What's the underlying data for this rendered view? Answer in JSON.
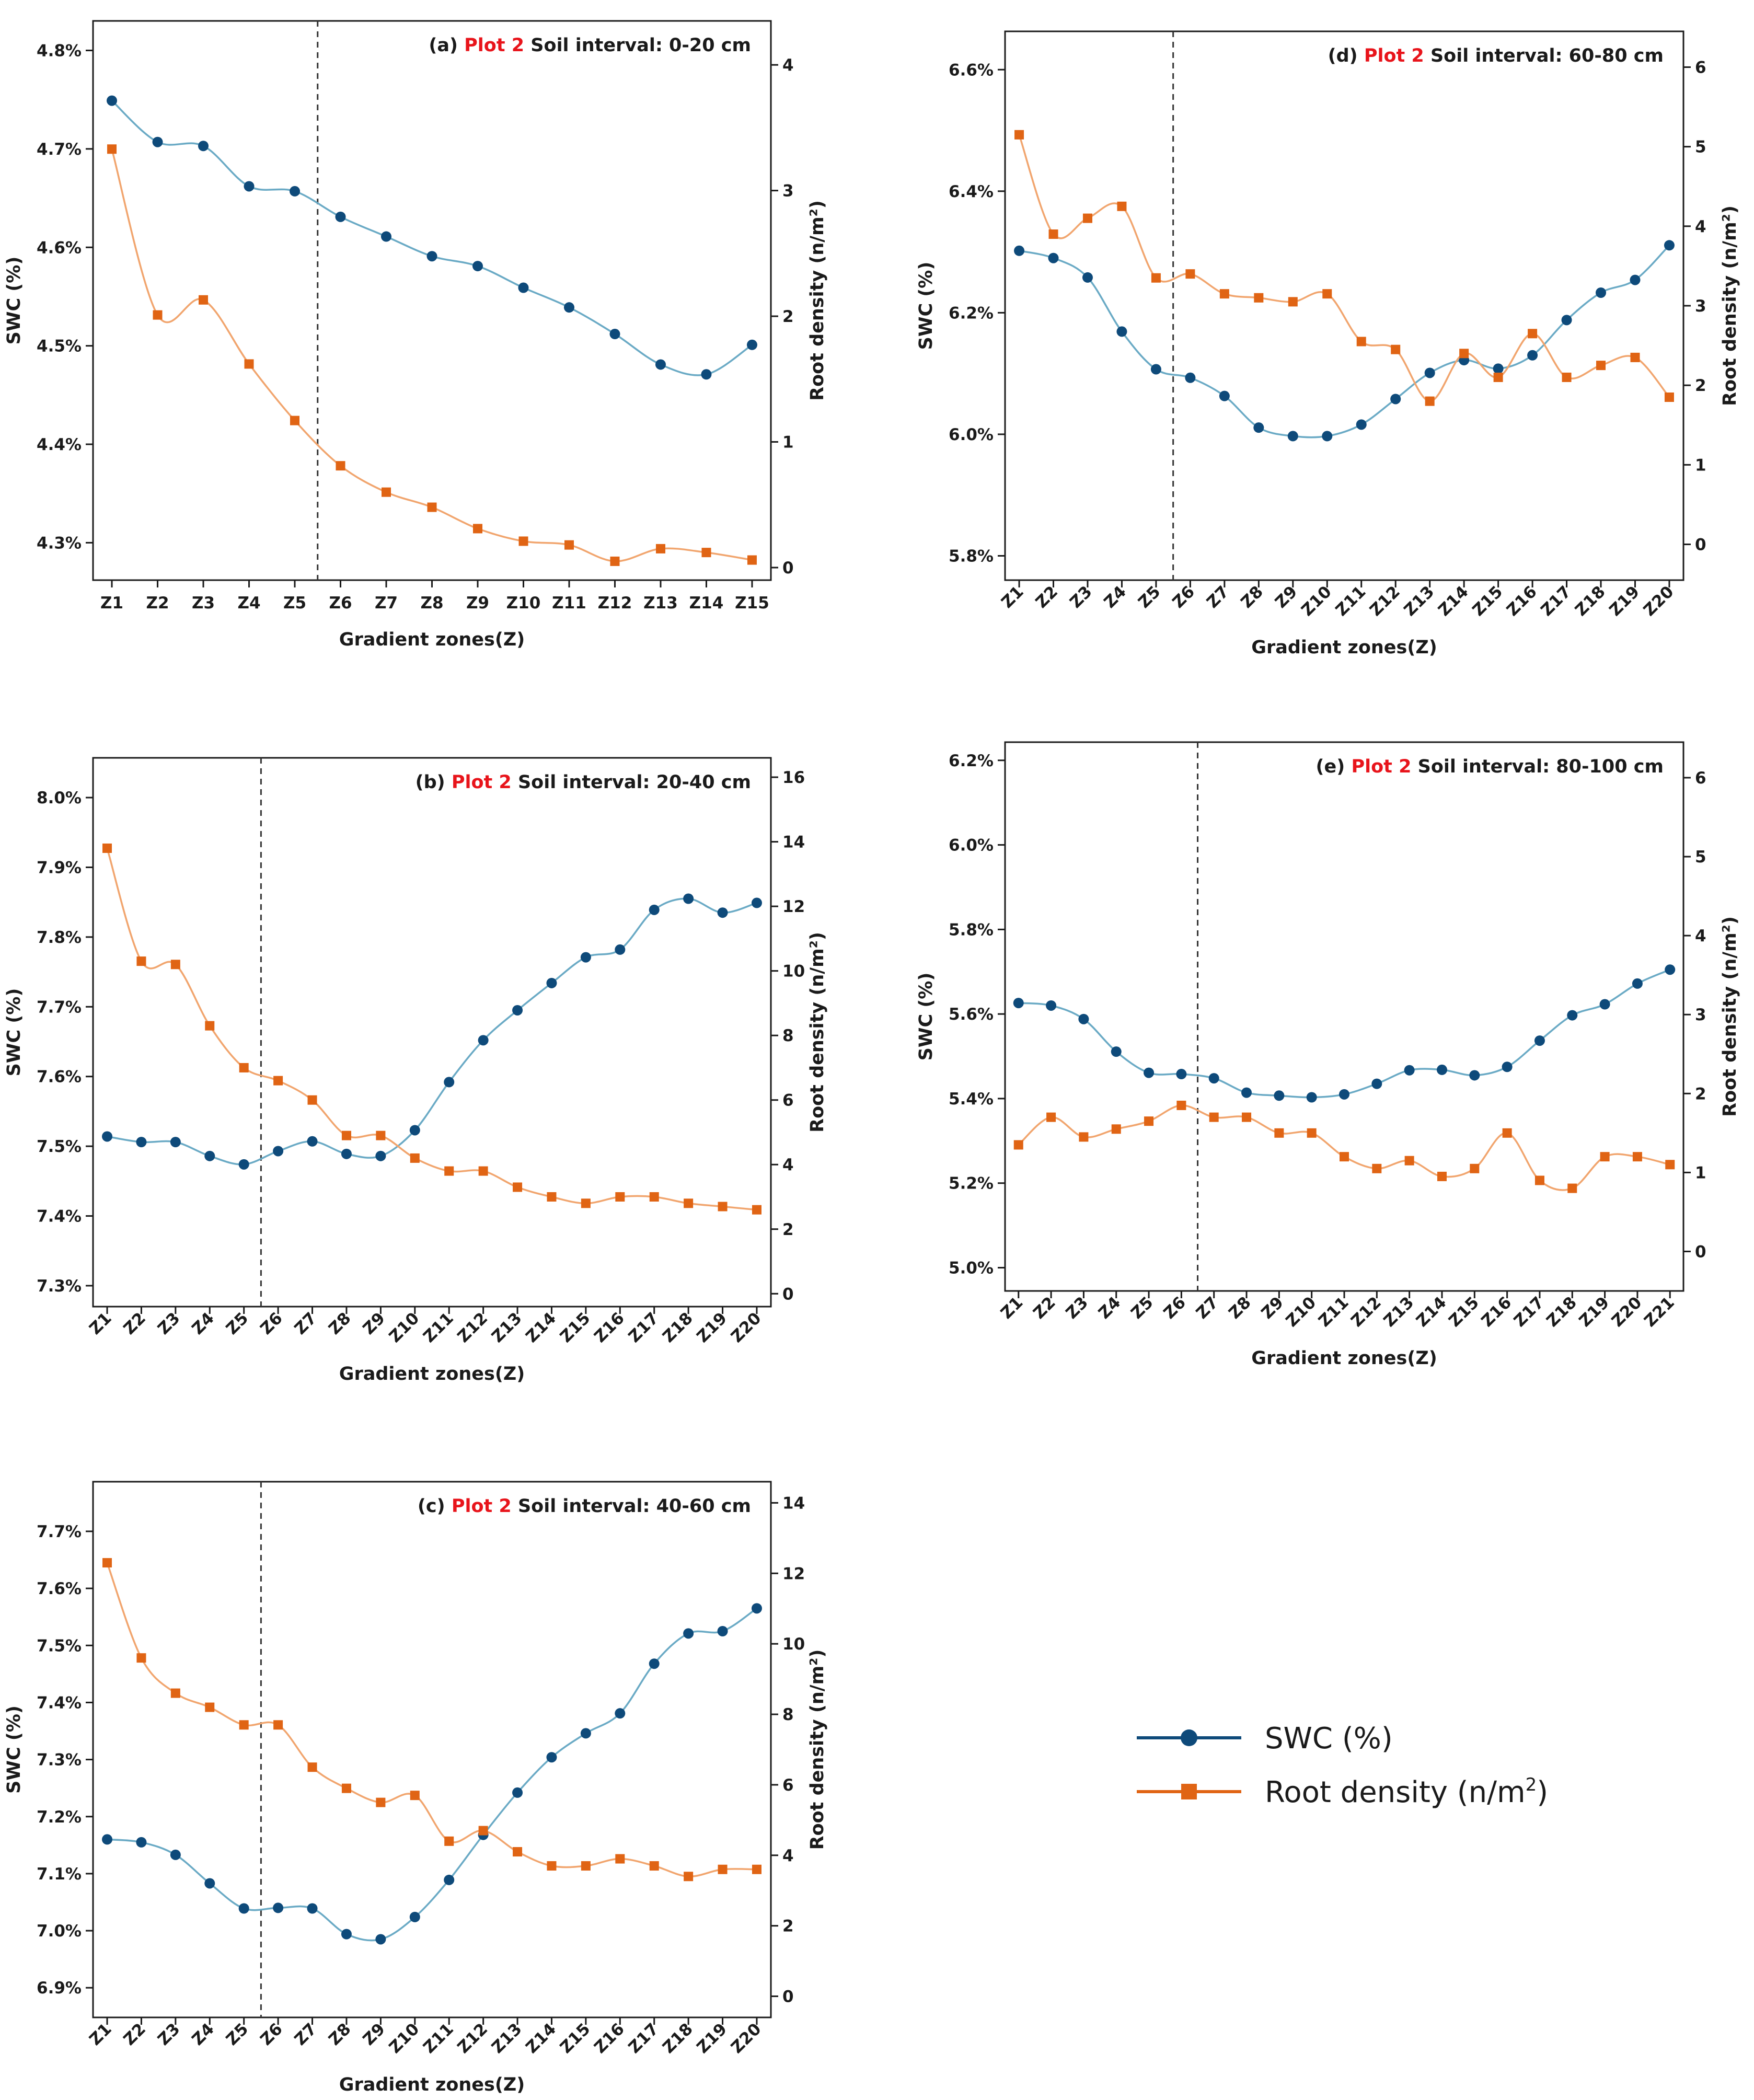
{
  "chart_data": [
    {
      "id": "a",
      "type": "line",
      "title_prefix": "(a)",
      "title_highlight": "Plot 2",
      "title_suffix": "Soil interval: 0-20 cm",
      "xlabel": "Gradient zones(Z)",
      "ylabel_left": "SWC (%)",
      "ylabel_right": "Root density (n/m²)",
      "categories": [
        "Z1",
        "Z2",
        "Z3",
        "Z4",
        "Z5",
        "Z6",
        "Z7",
        "Z8",
        "Z9",
        "Z10",
        "Z11",
        "Z12",
        "Z13",
        "Z14",
        "Z15"
      ],
      "x_ticks_rotated": false,
      "ylim_left": [
        4.262,
        4.83
      ],
      "yticks_left": [
        4.3,
        4.4,
        4.5,
        4.6,
        4.7,
        4.8
      ],
      "ytick_labels_left": [
        "4.3%",
        "4.4%",
        "4.5%",
        "4.6%",
        "4.7%",
        "4.8%"
      ],
      "ylim_right": [
        -0.1,
        4.35
      ],
      "yticks_right": [
        0,
        1,
        2,
        3,
        4
      ],
      "ytick_labels_right": [
        "0",
        "1",
        "2",
        "3",
        "4"
      ],
      "divider_after_index": 4,
      "series": [
        {
          "name": "SWC (%)",
          "axis": "left",
          "color": "#0e4a7a",
          "line_color": "#6aaac5",
          "marker": "circle",
          "values": [
            4.749,
            4.707,
            4.703,
            4.662,
            4.657,
            4.631,
            4.611,
            4.591,
            4.581,
            4.559,
            4.539,
            4.512,
            4.481,
            4.471,
            4.501
          ]
        },
        {
          "name": "Root density (n/m²)",
          "axis": "right",
          "color": "#e06414",
          "line_color": "#f1a56e",
          "marker": "square",
          "values": [
            3.33,
            2.01,
            2.13,
            1.62,
            1.17,
            0.81,
            0.6,
            0.48,
            0.31,
            0.21,
            0.18,
            0.05,
            0.15,
            0.12,
            0.06
          ]
        }
      ]
    },
    {
      "id": "b",
      "type": "line",
      "title_prefix": "(b)",
      "title_highlight": "Plot 2",
      "title_suffix": "Soil interval: 20-40 cm",
      "xlabel": "Gradient zones(Z)",
      "ylabel_left": "SWC (%)",
      "ylabel_right": "Root density (n/m²)",
      "categories": [
        "Z1",
        "Z2",
        "Z3",
        "Z4",
        "Z5",
        "Z6",
        "Z7",
        "Z8",
        "Z9",
        "Z10",
        "Z11",
        "Z12",
        "Z13",
        "Z14",
        "Z15",
        "Z16",
        "Z17",
        "Z18",
        "Z19",
        "Z20"
      ],
      "x_ticks_rotated": true,
      "ylim_left": [
        7.27,
        8.057
      ],
      "yticks_left": [
        7.3,
        7.4,
        7.5,
        7.6,
        7.7,
        7.8,
        7.9,
        8.0
      ],
      "ytick_labels_left": [
        "7.3%",
        "7.4%",
        "7.5%",
        "7.6%",
        "7.7%",
        "7.8%",
        "7.9%",
        "8.0%"
      ],
      "ylim_right": [
        -0.4,
        16.6
      ],
      "yticks_right": [
        0,
        2,
        4,
        6,
        8,
        10,
        12,
        14,
        16
      ],
      "ytick_labels_right": [
        "0",
        "2",
        "4",
        "6",
        "8",
        "10",
        "12",
        "14",
        "16"
      ],
      "divider_after_index": 4,
      "series": [
        {
          "name": "SWC (%)",
          "axis": "left",
          "color": "#0e4a7a",
          "line_color": "#6aaac5",
          "marker": "circle",
          "values": [
            7.514,
            7.506,
            7.506,
            7.486,
            7.474,
            7.493,
            7.507,
            7.489,
            7.486,
            7.523,
            7.592,
            7.652,
            7.695,
            7.734,
            7.771,
            7.782,
            7.839,
            7.855,
            7.835,
            7.849
          ]
        },
        {
          "name": "Root density (n/m²)",
          "axis": "right",
          "color": "#e06414",
          "line_color": "#f1a56e",
          "marker": "square",
          "values": [
            13.8,
            10.3,
            10.2,
            8.3,
            7.0,
            6.6,
            6.0,
            4.9,
            4.9,
            4.2,
            3.8,
            3.8,
            3.3,
            3.0,
            2.8,
            3.0,
            3.0,
            2.8,
            2.7,
            2.6
          ]
        }
      ]
    },
    {
      "id": "c",
      "type": "line",
      "title_prefix": "(c)",
      "title_highlight": "Plot 2",
      "title_suffix": "Soil interval: 40-60 cm",
      "xlabel": "Gradient zones(Z)",
      "ylabel_left": "SWC (%)",
      "ylabel_right": "Root density (n/m²)",
      "categories": [
        "Z1",
        "Z2",
        "Z3",
        "Z4",
        "Z5",
        "Z6",
        "Z7",
        "Z8",
        "Z9",
        "Z10",
        "Z11",
        "Z12",
        "Z13",
        "Z14",
        "Z15",
        "Z16",
        "Z17",
        "Z18",
        "Z19",
        "Z20"
      ],
      "x_ticks_rotated": true,
      "ylim_left": [
        6.848,
        7.787
      ],
      "yticks_left": [
        6.9,
        7.0,
        7.1,
        7.2,
        7.3,
        7.4,
        7.5,
        7.6,
        7.7
      ],
      "ytick_labels_left": [
        "6.9%",
        "7.0%",
        "7.1%",
        "7.2%",
        "7.3%",
        "7.4%",
        "7.5%",
        "7.6%",
        "7.7%"
      ],
      "ylim_right": [
        -0.6,
        14.6
      ],
      "yticks_right": [
        0,
        2,
        4,
        6,
        8,
        10,
        12,
        14
      ],
      "ytick_labels_right": [
        "0",
        "2",
        "4",
        "6",
        "8",
        "10",
        "12",
        "14"
      ],
      "divider_after_index": 4,
      "series": [
        {
          "name": "SWC (%)",
          "axis": "left",
          "color": "#0e4a7a",
          "line_color": "#6aaac5",
          "marker": "circle",
          "values": [
            7.16,
            7.155,
            7.133,
            7.083,
            7.039,
            7.04,
            7.039,
            6.994,
            6.985,
            7.024,
            7.089,
            7.168,
            7.242,
            7.304,
            7.346,
            7.381,
            7.468,
            7.521,
            7.525,
            7.565
          ]
        },
        {
          "name": "Root density (n/m²)",
          "axis": "right",
          "color": "#e06414",
          "line_color": "#f1a56e",
          "marker": "square",
          "values": [
            12.3,
            9.6,
            8.6,
            8.2,
            7.7,
            7.7,
            6.5,
            5.9,
            5.5,
            5.7,
            4.4,
            4.7,
            4.1,
            3.7,
            3.7,
            3.9,
            3.7,
            3.4,
            3.6,
            3.6
          ]
        }
      ]
    },
    {
      "id": "d",
      "type": "line",
      "title_prefix": "(d)",
      "title_highlight": "Plot 2",
      "title_suffix": "Soil interval: 60-80 cm",
      "xlabel": "Gradient zones(Z)",
      "ylabel_left": "SWC (%)",
      "ylabel_right": "Root density (n/m²)",
      "categories": [
        "Z1",
        "Z2",
        "Z3",
        "Z4",
        "Z5",
        "Z6",
        "Z7",
        "Z8",
        "Z9",
        "Z10",
        "Z11",
        "Z12",
        "Z13",
        "Z14",
        "Z15",
        "Z16",
        "Z17",
        "Z18",
        "Z19",
        "Z20"
      ],
      "x_ticks_rotated": true,
      "ylim_left": [
        5.76,
        6.663
      ],
      "yticks_left": [
        5.8,
        6.0,
        6.2,
        6.4,
        6.6
      ],
      "ytick_labels_left": [
        "5.8%",
        "6.0%",
        "6.2%",
        "6.4%",
        "6.6%"
      ],
      "ylim_right": [
        -0.45,
        6.45
      ],
      "yticks_right": [
        0,
        1,
        2,
        3,
        4,
        5,
        6
      ],
      "ytick_labels_right": [
        "0",
        "1",
        "2",
        "3",
        "4",
        "5",
        "6"
      ],
      "divider_after_index": 4,
      "series": [
        {
          "name": "SWC (%)",
          "axis": "left",
          "color": "#0e4a7a",
          "line_color": "#6aaac5",
          "marker": "circle",
          "values": [
            6.302,
            6.29,
            6.258,
            6.169,
            6.107,
            6.093,
            6.063,
            6.011,
            5.997,
            5.997,
            6.016,
            6.058,
            6.101,
            6.122,
            6.108,
            6.13,
            6.188,
            6.233,
            6.254,
            6.311
          ]
        },
        {
          "name": "Root density (n/m²)",
          "axis": "right",
          "color": "#e06414",
          "line_color": "#f1a56e",
          "marker": "square",
          "values": [
            5.15,
            3.9,
            4.1,
            4.25,
            3.35,
            3.4,
            3.15,
            3.1,
            3.05,
            3.15,
            2.55,
            2.45,
            1.8,
            2.4,
            2.1,
            2.65,
            2.1,
            2.25,
            2.35,
            1.85
          ]
        }
      ]
    },
    {
      "id": "e",
      "type": "line",
      "title_prefix": "(e)",
      "title_highlight": "Plot 2",
      "title_suffix": "Soil interval: 80-100 cm",
      "xlabel": "Gradient zones(Z)",
      "ylabel_left": "SWC (%)",
      "ylabel_right": "Root density (n/m²)",
      "categories": [
        "Z1",
        "Z2",
        "Z3",
        "Z4",
        "Z5",
        "Z6",
        "Z7",
        "Z8",
        "Z9",
        "Z10",
        "Z11",
        "Z12",
        "Z13",
        "Z14",
        "Z15",
        "Z16",
        "Z17",
        "Z18",
        "Z19",
        "Z20",
        "Z21"
      ],
      "x_ticks_rotated": true,
      "ylim_left": [
        4.945,
        6.243
      ],
      "yticks_left": [
        5.0,
        5.2,
        5.4,
        5.6,
        5.8,
        6.0,
        6.2
      ],
      "ytick_labels_left": [
        "5.0%",
        "5.2%",
        "5.4%",
        "5.6%",
        "5.8%",
        "6.0%",
        "6.2%"
      ],
      "ylim_right": [
        -0.5,
        6.45
      ],
      "yticks_right": [
        0,
        1,
        2,
        3,
        4,
        5,
        6
      ],
      "ytick_labels_right": [
        "0",
        "1",
        "2",
        "3",
        "4",
        "5",
        "6"
      ],
      "divider_after_index": 5,
      "series": [
        {
          "name": "SWC (%)",
          "axis": "left",
          "color": "#0e4a7a",
          "line_color": "#6aaac5",
          "marker": "circle",
          "values": [
            5.626,
            5.62,
            5.588,
            5.511,
            5.461,
            5.458,
            5.448,
            5.414,
            5.407,
            5.403,
            5.41,
            5.435,
            5.467,
            5.468,
            5.455,
            5.475,
            5.537,
            5.597,
            5.623,
            5.672,
            5.705
          ]
        },
        {
          "name": "Root density (n/m²)",
          "axis": "right",
          "color": "#e06414",
          "line_color": "#f1a56e",
          "marker": "square",
          "values": [
            1.35,
            1.7,
            1.45,
            1.55,
            1.65,
            1.85,
            1.7,
            1.7,
            1.5,
            1.5,
            1.2,
            1.05,
            1.15,
            0.95,
            1.05,
            1.5,
            0.9,
            0.8,
            1.2,
            1.2,
            1.1
          ]
        }
      ]
    }
  ],
  "legend": {
    "swc_label": "SWC (%)",
    "root_label_main": "Root density (n/m",
    "root_label_sup": "2",
    "root_label_end": ")",
    "swc_color": "#0e4a7a",
    "root_color": "#e06414"
  }
}
